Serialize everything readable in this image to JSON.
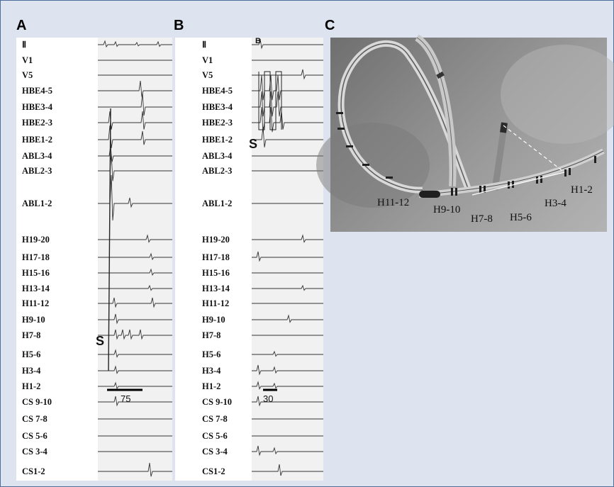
{
  "panels": {
    "a": {
      "letter": "A",
      "scale_value": "75",
      "stim_label": "S"
    },
    "b": {
      "letter": "B",
      "scale_value": "30",
      "stim_label": "S",
      "top_mark": "B"
    },
    "c": {
      "letter": "C"
    }
  },
  "channels": [
    "Ⅱ",
    "V1",
    "V5",
    "HBE4-5",
    "HBE3-4",
    "HBE2-3",
    "HBE1-2",
    "ABL3-4",
    "ABL2-3",
    "ABL1-2",
    "H19-20",
    "H17-18",
    "H15-16",
    "H13-14",
    "H11-12",
    "H9-10",
    "H7-8",
    "H5-6",
    "H3-4",
    "H1-2",
    "CS 9-10",
    "CS 7-8",
    "CS 5-6",
    "CS 3-4",
    "CS1-2"
  ],
  "electrode_labels": {
    "h11_12": "H11-12",
    "h9_10": "H9-10",
    "h7_8": "H7-8",
    "h5_6": "H5-6",
    "h3_4": "H3-4",
    "h1_2": "H1-2"
  },
  "colors": {
    "frame_border": "#4d6d9a",
    "frame_bg": "#dde4ef"
  }
}
